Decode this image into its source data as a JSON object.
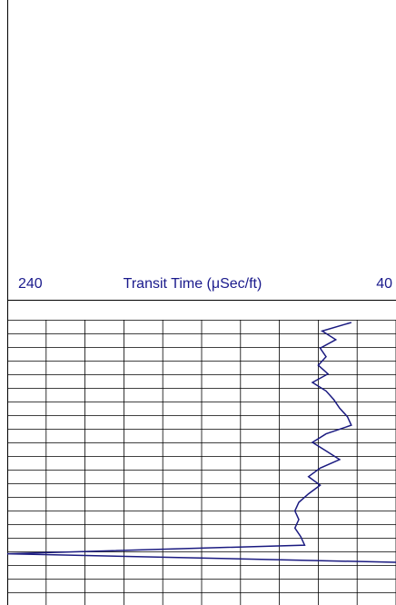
{
  "chart_data": {
    "type": "line",
    "x_label": "Transit Time (μSec/ft)",
    "xlim": [
      240,
      40
    ],
    "xticks": [
      240,
      40
    ],
    "color": "#1a1a80",
    "values": [
      63,
      78,
      71,
      79,
      76,
      80,
      75,
      83,
      76,
      72,
      69,
      65,
      63,
      76,
      83,
      76,
      69,
      79,
      85,
      79,
      85,
      90,
      92,
      90,
      92,
      89,
      87,
      240,
      40
    ]
  }
}
